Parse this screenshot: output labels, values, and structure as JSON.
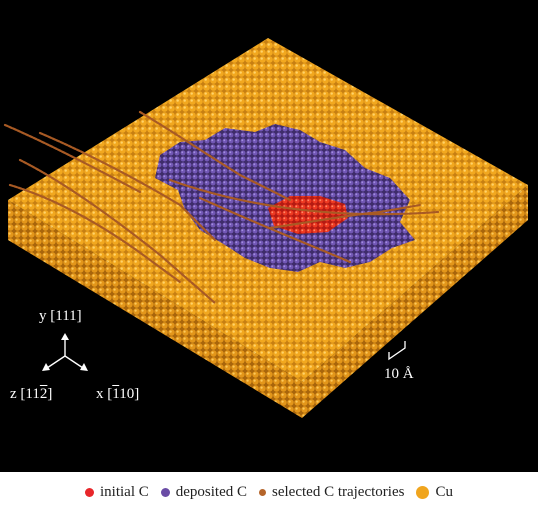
{
  "figure": {
    "axes": {
      "y": {
        "symbol": "y",
        "index": "[111]"
      },
      "z": {
        "symbol": "z",
        "index_pre": "[11",
        "index_bar": "2",
        "index_post": "]"
      },
      "x": {
        "symbol": "x",
        "index_pre": "[",
        "index_bar": "1",
        "index_post": "10]"
      }
    },
    "scale_bar": "10 Å"
  },
  "legend": {
    "items": [
      {
        "label": "initial C",
        "color": "#e8262a"
      },
      {
        "label": "deposited C",
        "color": "#6a4ca6"
      },
      {
        "label": "selected C trajectories",
        "color": "#b5652a"
      },
      {
        "label": "Cu",
        "color": "#f0a51e"
      }
    ]
  },
  "colors": {
    "background": "#000000",
    "copper": "#f0a51e",
    "copper_shade": "#b86e0c",
    "initial_carbon": "#e8262a",
    "deposited_carbon": "#6a4ca6",
    "trajectory": "#b5652a"
  }
}
